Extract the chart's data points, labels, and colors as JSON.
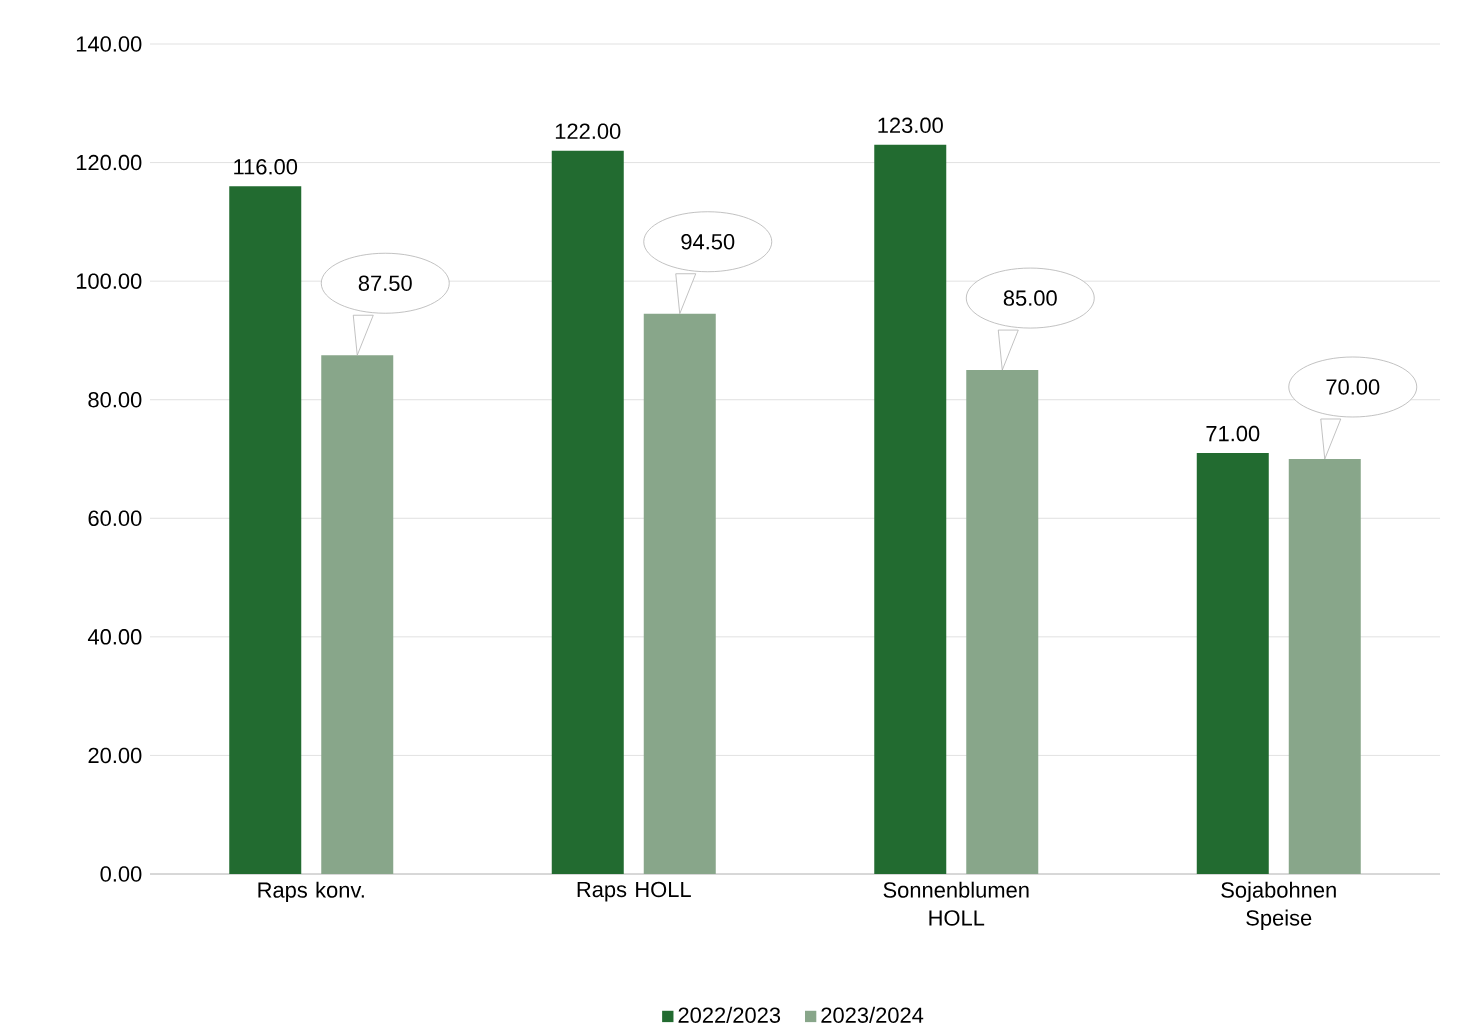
{
  "chart_data": {
    "type": "bar",
    "categories": [
      "Raps konv.",
      "Raps HOLL",
      "Sonnenblumen HOLL",
      "Sojabohnen Speise"
    ],
    "series": [
      {
        "name": "2022/2023",
        "color": "#226b30",
        "values": [
          116,
          122,
          123,
          71
        ],
        "value_labels": [
          "116.00",
          "122.00",
          "123.00",
          "71.00"
        ]
      },
      {
        "name": "2023/2024",
        "color": "#88a68a",
        "values": [
          87.5,
          94.5,
          85,
          70
        ],
        "value_labels": [
          "87.50",
          "94.50",
          "85.00",
          "70.00"
        ]
      }
    ],
    "ylim": [
      0,
      140
    ],
    "yticks": [
      {
        "value": 0,
        "label": "0.00"
      },
      {
        "value": 20,
        "label": "20.00"
      },
      {
        "value": 40,
        "label": "40.00"
      },
      {
        "value": 60,
        "label": "60.00"
      },
      {
        "value": 80,
        "label": "80.00"
      },
      {
        "value": 100,
        "label": "100.00"
      },
      {
        "value": 120,
        "label": "120.00"
      },
      {
        "value": 140,
        "label": "140.00"
      }
    ],
    "grid": "y",
    "legend": "bottom"
  }
}
